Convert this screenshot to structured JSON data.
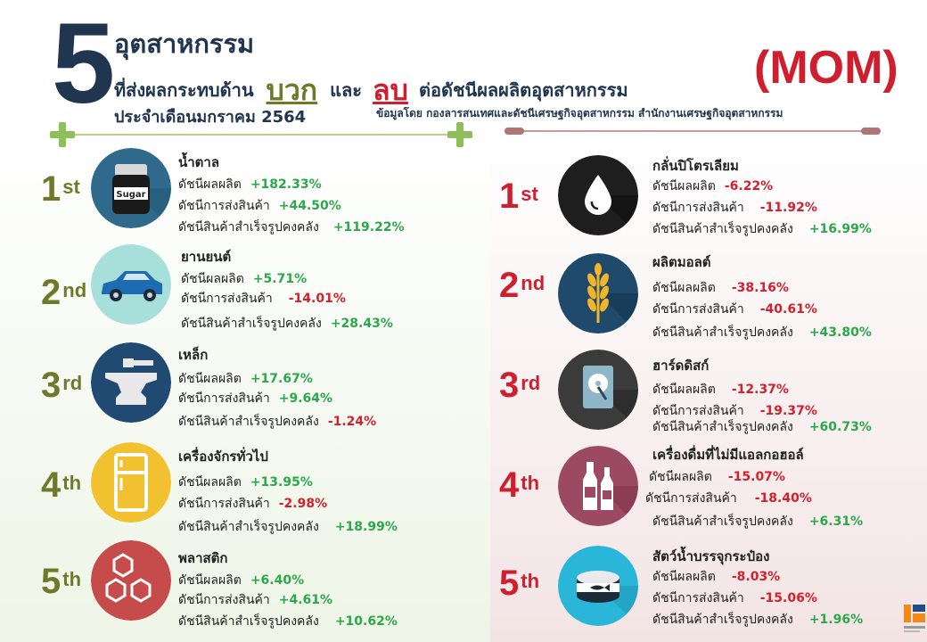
{
  "header": {
    "big_number": "5",
    "line1": "อุตสาหกรรม",
    "line2_pre": "ที่ส่งผลกระทบด้าน",
    "positive_word": "บวก",
    "and_word": "และ",
    "negative_word": "ลบ",
    "line2_post": "ต่อดัชนีผลผลิตอุตสาหกรรม",
    "line3": "ประจำเดือนมกราคม  2564",
    "mom": "(MOM)",
    "source": "ข้อมูลโดย  กองลารสนเทศและดัชนีเศรษฐกิจอุตสาหกรรม สำนักงานเศรษฐกิจอุตสาหกรรม"
  },
  "colors": {
    "navy": "#20354f",
    "olive": "#6e7a2a",
    "red": "#cf1f2e",
    "up": "#2aa84a",
    "down": "#d4202c"
  },
  "labels": {
    "production": "ดัชนีผลผลิต",
    "shipment": "ดัชนีการส่งสินค้า",
    "inventory": "ดัชนีสินค้าสำเร็จรูปคงคลัง"
  },
  "positive": [
    {
      "rank": "1",
      "suffix": "st",
      "name": "น้ำตาล",
      "icon": "sugar-jar-icon",
      "circle_color": "#2f6a8c",
      "production": "+182.33%",
      "shipment": "+44.50%",
      "inventory": "+119.22%"
    },
    {
      "rank": "2",
      "suffix": "nd",
      "name": "ยานยนต์",
      "icon": "car-icon",
      "circle_color": "#a7e0db",
      "production": "+5.71%",
      "shipment": "-14.01%",
      "inventory": "+28.43%"
    },
    {
      "rank": "3",
      "suffix": "rd",
      "name": "เหล็ก",
      "icon": "anvil-icon",
      "circle_color": "#214a73",
      "production": "+17.67%",
      "shipment": "+9.64%",
      "inventory": "-1.24%"
    },
    {
      "rank": "4",
      "suffix": "th",
      "name": "เครื่องจักรทั่วไป",
      "icon": "refrigerator-icon",
      "circle_color": "#f2c130",
      "production": "+13.95%",
      "shipment": "-2.98%",
      "inventory": "+18.99%"
    },
    {
      "rank": "5",
      "suffix": "th",
      "name": "พลาสติก",
      "icon": "hexagons-icon",
      "circle_color": "#c64b4b",
      "production": "+6.40%",
      "shipment": "+4.61%",
      "inventory": "+10.62%"
    }
  ],
  "negative": [
    {
      "rank": "1",
      "suffix": "st",
      "name": "กลั่นปิโตรเลียม",
      "icon": "oil-drop-icon",
      "circle_color": "#1e1e1e",
      "production": "-6.22%",
      "shipment": "-11.92%",
      "inventory": "+16.99%"
    },
    {
      "rank": "2",
      "suffix": "nd",
      "name": "ผลิตมอลต์",
      "icon": "wheat-icon",
      "circle_color": "#1f4a6b",
      "production": "-38.16%",
      "shipment": "-40.61%",
      "inventory": "+43.80%"
    },
    {
      "rank": "3",
      "suffix": "rd",
      "name": "ฮาร์ดดิสก์",
      "icon": "hard-disk-icon",
      "circle_color": "#3b3b3b",
      "production": "-12.37%",
      "shipment": "-19.37%",
      "inventory": "+60.73%"
    },
    {
      "rank": "4",
      "suffix": "th",
      "name": "เครื่องดื่มที่ไม่มีแอลกอฮอล์",
      "icon": "bottles-icon",
      "circle_color": "#9c4a63",
      "production": "-15.07%",
      "shipment": "-18.40%",
      "inventory": "+6.31%"
    },
    {
      "rank": "5",
      "suffix": "th",
      "name": "สัตว์น้ำบรรจุกระป๋อง",
      "icon": "fish-can-icon",
      "circle_color": "#29b6d9",
      "production": "-8.03%",
      "shipment": "-15.06%",
      "inventory": "+1.96%"
    }
  ]
}
